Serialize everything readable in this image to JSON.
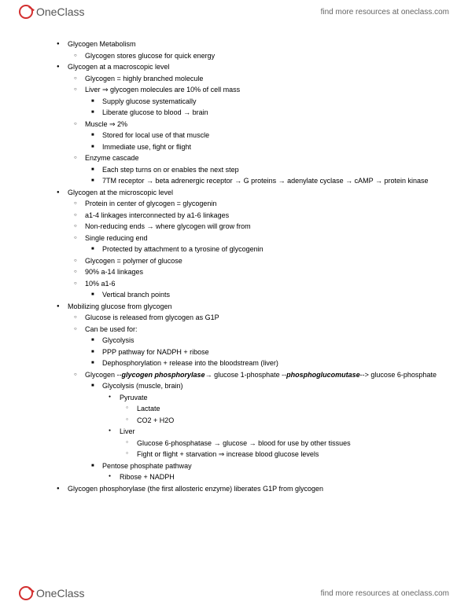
{
  "brand": {
    "part1": "One",
    "part2": "Class"
  },
  "header_link": "find more resources at oneclass.com",
  "footer_link": "find more resources at oneclass.com",
  "notes": [
    {
      "lvl": 1,
      "b": "disc",
      "t": "Glycogen Metabolism"
    },
    {
      "lvl": 2,
      "b": "circ",
      "t": "Glycogen stores glucose for quick energy"
    },
    {
      "lvl": 1,
      "b": "disc",
      "t": "Glycogen at a macroscopic level"
    },
    {
      "lvl": 2,
      "b": "circ",
      "t": "Glycogen = highly branched molecule"
    },
    {
      "lvl": 2,
      "b": "circ",
      "t": "Liver ⇒ glycogen molecules are 10% of cell mass"
    },
    {
      "lvl": 3,
      "b": "sq",
      "t": "Supply glucose systematically"
    },
    {
      "lvl": 3,
      "b": "sq",
      "t": "Liberate glucose to blood → brain"
    },
    {
      "lvl": 2,
      "b": "circ",
      "t": "Muscle ⇒ 2%"
    },
    {
      "lvl": 3,
      "b": "sq",
      "t": "Stored for local use of that muscle"
    },
    {
      "lvl": 3,
      "b": "sq",
      "t": "Immediate use, fight or flight"
    },
    {
      "lvl": 2,
      "b": "circ",
      "t": "Enzyme cascade"
    },
    {
      "lvl": 3,
      "b": "sq",
      "t": "Each step turns on or enables the next step"
    },
    {
      "lvl": 3,
      "b": "sq",
      "t": "7TM receptor → beta adrenergic receptor → G proteins → adenylate cyclase → cAMP → protein kinase"
    },
    {
      "lvl": 1,
      "b": "disc",
      "t": "Glycogen at the microscopic level"
    },
    {
      "lvl": 2,
      "b": "circ",
      "t": "Protein in center of glycogen = glycogenin"
    },
    {
      "lvl": 2,
      "b": "circ",
      "t": "a1-4 linkages interconnected by a1-6 linkages"
    },
    {
      "lvl": 2,
      "b": "circ",
      "t": "Non-reducing ends → where glycogen will grow from"
    },
    {
      "lvl": 2,
      "b": "circ",
      "t": "Single reducing end"
    },
    {
      "lvl": 3,
      "b": "sq",
      "t": "Protected by attachment to a tyrosine of glycogenin"
    },
    {
      "lvl": 2,
      "b": "circ",
      "t": "Glycogen = polymer of glucose"
    },
    {
      "lvl": 2,
      "b": "circ",
      "t": "90% a-14 linkages"
    },
    {
      "lvl": 2,
      "b": "circ",
      "t": "10% a1-6"
    },
    {
      "lvl": 3,
      "b": "sq",
      "t": "Vertical branch points"
    },
    {
      "lvl": 1,
      "b": "disc",
      "t": "Mobilizing glucose from glycogen"
    },
    {
      "lvl": 2,
      "b": "circ",
      "t": "Glucose is released from glycogen as G1P"
    },
    {
      "lvl": 2,
      "b": "circ",
      "t": "Can be used for:"
    },
    {
      "lvl": 3,
      "b": "sq",
      "t": "Glycolysis"
    },
    {
      "lvl": 3,
      "b": "sq",
      "t": "PPP pathway for NADPH + ribose"
    },
    {
      "lvl": 3,
      "b": "sq",
      "t": "Dephosphorylation + release into the bloodstream (liver)"
    },
    {
      "lvl": 2,
      "b": "circ",
      "html": "Glycogen --<em class='ital'>glycogen phosphorylase</em>→ glucose 1-phosphate --<em class='ital'>phosphoglucomutase</em>--> glucose 6-phosphate"
    },
    {
      "lvl": 3,
      "b": "sq",
      "t": "Glycolysis (muscle, brain)"
    },
    {
      "lvl": 4,
      "b": "sc",
      "t": "Pyruvate"
    },
    {
      "lvl": 5,
      "b": "oc",
      "t": "Lactate"
    },
    {
      "lvl": 5,
      "b": "oc",
      "t": "CO2 + H2O"
    },
    {
      "lvl": 4,
      "b": "sc",
      "t": "Liver"
    },
    {
      "lvl": 5,
      "b": "oc",
      "t": "Glucose 6-phosphatase → glucose → blood for use by other tissues"
    },
    {
      "lvl": 5,
      "b": "oc",
      "t": "Fight or flight + starvation ⇒ increase blood glucose levels"
    },
    {
      "lvl": 3,
      "b": "sq",
      "t": "Pentose phosphate pathway"
    },
    {
      "lvl": 4,
      "b": "sc",
      "t": "Ribose + NADPH"
    },
    {
      "lvl": 1,
      "b": "disc",
      "t": "Glycogen phosphorylase (the first allosteric enzyme) liberates G1P from glycogen"
    }
  ]
}
